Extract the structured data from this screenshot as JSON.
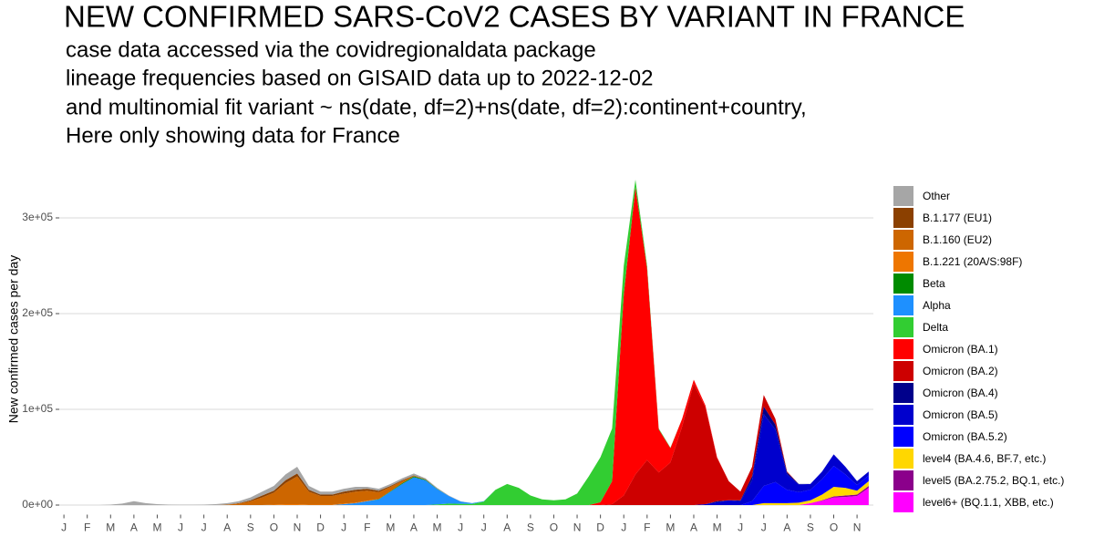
{
  "chart_data": {
    "type": "stacked-area",
    "title": "NEW CONFIRMED SARS-CoV2 CASES BY VARIANT IN FRANCE",
    "subtitle": [
      "case data accessed via the covidregionaldata package",
      "lineage frequencies based on GISAID data up to 2022-12-02",
      "and multinomial fit variant ~ ns(date, df=2)+ns(date, df=2):continent+country,",
      "Here only showing data for France"
    ],
    "y_label": "New confirmed cases per day",
    "grid": true,
    "xlim": [
      -0.2,
      34.7
    ],
    "ylim": [
      -10000,
      350000
    ],
    "yticks": [
      {
        "value": 0,
        "label": "0e+00"
      },
      {
        "value": 100000,
        "label": "1e+05"
      },
      {
        "value": 200000,
        "label": "2e+05"
      },
      {
        "value": 300000,
        "label": "3e+05"
      }
    ],
    "xticks": [
      {
        "value": 0,
        "label": "J"
      },
      {
        "value": 1,
        "label": "F"
      },
      {
        "value": 2,
        "label": "M"
      },
      {
        "value": 3,
        "label": "A"
      },
      {
        "value": 4,
        "label": "M"
      },
      {
        "value": 5,
        "label": "J"
      },
      {
        "value": 6,
        "label": "J"
      },
      {
        "value": 7,
        "label": "A"
      },
      {
        "value": 8,
        "label": "S"
      },
      {
        "value": 9,
        "label": "O"
      },
      {
        "value": 10,
        "label": "N"
      },
      {
        "value": 11,
        "label": "D"
      },
      {
        "value": 12,
        "label": "J"
      },
      {
        "value": 13,
        "label": "F"
      },
      {
        "value": 14,
        "label": "M"
      },
      {
        "value": 15,
        "label": "A"
      },
      {
        "value": 16,
        "label": "M"
      },
      {
        "value": 17,
        "label": "J"
      },
      {
        "value": 18,
        "label": "J"
      },
      {
        "value": 19,
        "label": "A"
      },
      {
        "value": 20,
        "label": "S"
      },
      {
        "value": 21,
        "label": "O"
      },
      {
        "value": 22,
        "label": "N"
      },
      {
        "value": 23,
        "label": "D"
      },
      {
        "value": 24,
        "label": "J"
      },
      {
        "value": 25,
        "label": "F"
      },
      {
        "value": 26,
        "label": "M"
      },
      {
        "value": 27,
        "label": "A"
      },
      {
        "value": 28,
        "label": "M"
      },
      {
        "value": 29,
        "label": "J"
      },
      {
        "value": 30,
        "label": "J"
      },
      {
        "value": 31,
        "label": "A"
      },
      {
        "value": 32,
        "label": "S"
      },
      {
        "value": 33,
        "label": "O"
      },
      {
        "value": 34,
        "label": "N"
      }
    ],
    "x": [
      0,
      0.5,
      1,
      1.5,
      2,
      2.5,
      3,
      3.5,
      4,
      4.5,
      5,
      5.5,
      6,
      6.5,
      7,
      7.5,
      8,
      8.5,
      9,
      9.5,
      10,
      10.5,
      11,
      11.5,
      12,
      12.5,
      13,
      13.5,
      14,
      14.5,
      15,
      15.5,
      16,
      16.5,
      17,
      17.5,
      18,
      18.5,
      19,
      19.5,
      20,
      20.5,
      21,
      21.5,
      22,
      22.5,
      23,
      23.5,
      24,
      24.5,
      25,
      25.5,
      26,
      26.5,
      27,
      27.5,
      28,
      28.5,
      29,
      29.5,
      30,
      30.5,
      31,
      31.5,
      32,
      32.5,
      33,
      33.5,
      34,
      34.5
    ],
    "series": [
      {
        "name": "Other",
        "color": "#a6a6a6",
        "values": [
          0,
          0,
          0,
          0,
          500,
          1500,
          4000,
          2000,
          1000,
          500,
          300,
          300,
          500,
          1000,
          1500,
          2000,
          3000,
          4000,
          5000,
          6000,
          7000,
          4000,
          3000,
          3000,
          3000,
          3000,
          2000,
          2000,
          2000,
          2000,
          2000,
          1000,
          1000,
          500,
          200,
          0,
          0,
          0,
          0,
          0,
          0,
          0,
          0,
          0,
          0,
          0,
          0,
          0,
          0,
          0,
          0,
          0,
          0,
          0,
          0,
          0,
          0,
          0,
          0,
          0,
          0,
          0,
          0,
          0,
          0,
          0,
          0,
          0,
          0,
          0
        ]
      },
      {
        "name": "B.1.177 (EU1)",
        "color": "#8b4000",
        "values": [
          0,
          0,
          0,
          0,
          0,
          0,
          0,
          0,
          0,
          0,
          0,
          0,
          0,
          0,
          0,
          500,
          1000,
          2000,
          2000,
          3000,
          3000,
          2000,
          1500,
          1500,
          2000,
          2000,
          2000,
          1500,
          1000,
          1000,
          500,
          300,
          0,
          0,
          0,
          0,
          0,
          0,
          0,
          0,
          0,
          0,
          0,
          0,
          0,
          0,
          0,
          0,
          0,
          0,
          0,
          0,
          0,
          0,
          0,
          0,
          0,
          0,
          0,
          0,
          0,
          0,
          0,
          0,
          0,
          0,
          0,
          0,
          0,
          0
        ]
      },
      {
        "name": "B.1.160 (EU2)",
        "color": "#cd6600",
        "values": [
          0,
          0,
          0,
          0,
          0,
          0,
          0,
          0,
          0,
          0,
          0,
          0,
          0,
          0,
          500,
          1500,
          4000,
          8000,
          12500,
          22000,
          29000,
          13500,
          9000,
          9000,
          10500,
          11500,
          10500,
          7200,
          4500,
          2200,
          500,
          200,
          0,
          0,
          0,
          0,
          0,
          0,
          0,
          0,
          0,
          0,
          0,
          0,
          0,
          0,
          0,
          0,
          0,
          0,
          0,
          0,
          0,
          0,
          0,
          0,
          0,
          0,
          0,
          0,
          0,
          0,
          0,
          0,
          0,
          0,
          0,
          0,
          0,
          0
        ]
      },
      {
        "name": "B.1.221 (20A/S:98F)",
        "color": "#ee7600",
        "values": [
          0,
          0,
          0,
          0,
          0,
          0,
          0,
          0,
          0,
          0,
          0,
          0,
          0,
          0,
          0,
          0,
          0,
          0,
          500,
          1000,
          1000,
          500,
          500,
          500,
          500,
          500,
          500,
          0,
          0,
          0,
          0,
          0,
          0,
          0,
          0,
          0,
          0,
          0,
          0,
          0,
          0,
          0,
          0,
          0,
          0,
          0,
          0,
          0,
          0,
          0,
          0,
          0,
          0,
          0,
          0,
          0,
          0,
          0,
          0,
          0,
          0,
          0,
          0,
          0,
          0,
          0,
          0,
          0,
          0,
          0
        ]
      },
      {
        "name": "Beta",
        "color": "#008b00",
        "values": [
          0,
          0,
          0,
          0,
          0,
          0,
          0,
          0,
          0,
          0,
          0,
          0,
          0,
          0,
          0,
          0,
          0,
          0,
          0,
          0,
          0,
          0,
          0,
          0,
          0,
          0,
          0,
          300,
          500,
          800,
          1000,
          500,
          300,
          0,
          0,
          0,
          0,
          0,
          0,
          0,
          0,
          0,
          0,
          0,
          0,
          0,
          0,
          0,
          0,
          0,
          0,
          0,
          0,
          0,
          0,
          0,
          0,
          0,
          0,
          0,
          0,
          0,
          0,
          0,
          0,
          0,
          0,
          0,
          0,
          0
        ]
      },
      {
        "name": "Alpha",
        "color": "#1e90ff",
        "values": [
          0,
          0,
          0,
          0,
          0,
          0,
          0,
          0,
          0,
          0,
          0,
          0,
          0,
          0,
          0,
          0,
          0,
          0,
          0,
          0,
          0,
          0,
          0,
          0,
          1000,
          2000,
          4000,
          6000,
          14000,
          22000,
          29000,
          26000,
          16000,
          8000,
          2500,
          800,
          300,
          0,
          0,
          0,
          0,
          0,
          0,
          0,
          0,
          0,
          0,
          0,
          0,
          0,
          0,
          0,
          0,
          0,
          0,
          0,
          0,
          0,
          0,
          0,
          0,
          0,
          0,
          0,
          0,
          0,
          0,
          0,
          0,
          0
        ]
      },
      {
        "name": "Delta",
        "color": "#32cd32",
        "values": [
          0,
          0,
          0,
          0,
          0,
          0,
          0,
          0,
          0,
          0,
          0,
          0,
          0,
          0,
          0,
          0,
          0,
          0,
          0,
          0,
          0,
          0,
          0,
          0,
          0,
          0,
          0,
          0,
          0,
          0,
          0,
          0,
          700,
          1500,
          1300,
          1200,
          3700,
          16000,
          22000,
          18000,
          10000,
          6000,
          5000,
          6000,
          12000,
          30000,
          47000,
          55000,
          30000,
          8000,
          3000,
          1000,
          500,
          0,
          0,
          0,
          0,
          0,
          0,
          0,
          0,
          0,
          0,
          0,
          0,
          0,
          0,
          0,
          0,
          0
        ]
      },
      {
        "name": "Omicron (BA.1)",
        "color": "#ff0000",
        "values": [
          0,
          0,
          0,
          0,
          0,
          0,
          0,
          0,
          0,
          0,
          0,
          0,
          0,
          0,
          0,
          0,
          0,
          0,
          0,
          0,
          0,
          0,
          0,
          0,
          0,
          0,
          0,
          0,
          0,
          0,
          0,
          0,
          0,
          0,
          0,
          0,
          0,
          0,
          0,
          0,
          0,
          0,
          0,
          0,
          0,
          0,
          3000,
          24000,
          210000,
          300000,
          200000,
          45000,
          15000,
          8000,
          4000,
          2000,
          1000,
          0,
          0,
          0,
          0,
          0,
          0,
          0,
          0,
          0,
          0,
          0,
          0,
          0
        ]
      },
      {
        "name": "Omicron (BA.2)",
        "color": "#cd0000",
        "values": [
          0,
          0,
          0,
          0,
          0,
          0,
          0,
          0,
          0,
          0,
          0,
          0,
          0,
          0,
          0,
          0,
          0,
          0,
          0,
          0,
          0,
          0,
          0,
          0,
          0,
          0,
          0,
          0,
          0,
          0,
          0,
          0,
          0,
          0,
          0,
          0,
          0,
          0,
          0,
          0,
          0,
          0,
          0,
          0,
          0,
          0,
          0,
          1000,
          10000,
          32000,
          47000,
          34000,
          44500,
          82000,
          127000,
          101000,
          45000,
          20000,
          9000,
          10000,
          12000,
          6000,
          1000,
          0,
          0,
          0,
          0,
          0,
          0,
          0
        ]
      },
      {
        "name": "Omicron (BA.4)",
        "color": "#00008b",
        "values": [
          0,
          0,
          0,
          0,
          0,
          0,
          0,
          0,
          0,
          0,
          0,
          0,
          0,
          0,
          0,
          0,
          0,
          0,
          0,
          0,
          0,
          0,
          0,
          0,
          0,
          0,
          0,
          0,
          0,
          0,
          0,
          0,
          0,
          0,
          0,
          0,
          0,
          0,
          0,
          0,
          0,
          0,
          0,
          0,
          0,
          0,
          0,
          0,
          0,
          0,
          0,
          0,
          0,
          0,
          0,
          0,
          1000,
          0,
          1000,
          4000,
          8000,
          5000,
          2000,
          500,
          0,
          0,
          0,
          0,
          0,
          0
        ]
      },
      {
        "name": "Omicron (BA.5)",
        "color": "#0000cd",
        "values": [
          0,
          0,
          0,
          0,
          0,
          0,
          0,
          0,
          0,
          0,
          0,
          0,
          0,
          0,
          0,
          0,
          0,
          0,
          0,
          0,
          0,
          0,
          0,
          0,
          0,
          0,
          0,
          0,
          0,
          0,
          0,
          0,
          0,
          0,
          0,
          0,
          0,
          0,
          0,
          0,
          0,
          0,
          0,
          0,
          0,
          0,
          0,
          0,
          0,
          0,
          0,
          0,
          0,
          0,
          0,
          1000,
          3000,
          5000,
          4000,
          22000,
          75000,
          55000,
          16000,
          8000,
          6000,
          8000,
          12000,
          8000,
          4000,
          4000
        ]
      },
      {
        "name": "Omicron (BA.5.2)",
        "color": "#0000ff",
        "values": [
          0,
          0,
          0,
          0,
          0,
          0,
          0,
          0,
          0,
          0,
          0,
          0,
          0,
          0,
          0,
          0,
          0,
          0,
          0,
          0,
          0,
          0,
          0,
          0,
          0,
          0,
          0,
          0,
          0,
          0,
          0,
          0,
          0,
          0,
          0,
          0,
          0,
          0,
          0,
          0,
          0,
          0,
          0,
          0,
          0,
          0,
          0,
          0,
          0,
          0,
          0,
          0,
          0,
          0,
          0,
          0,
          0,
          0,
          0,
          4000,
          18000,
          22000,
          14000,
          11000,
          11000,
          16000,
          22000,
          14000,
          6000,
          6000
        ]
      },
      {
        "name": "level4 (BA.4.6, BF.7, etc.)",
        "color": "#ffd700",
        "values": [
          0,
          0,
          0,
          0,
          0,
          0,
          0,
          0,
          0,
          0,
          0,
          0,
          0,
          0,
          0,
          0,
          0,
          0,
          0,
          0,
          0,
          0,
          0,
          0,
          0,
          0,
          0,
          0,
          0,
          0,
          0,
          0,
          0,
          0,
          0,
          0,
          0,
          0,
          0,
          0,
          0,
          0,
          0,
          0,
          0,
          0,
          0,
          0,
          0,
          0,
          0,
          0,
          0,
          0,
          0,
          0,
          0,
          0,
          0,
          0,
          2000,
          2000,
          2000,
          2500,
          3000,
          6000,
          10000,
          8000,
          4000,
          5000
        ]
      },
      {
        "name": "level5 (BA.2.75.2, BQ.1, etc.)",
        "color": "#8b008b",
        "values": [
          0,
          0,
          0,
          0,
          0,
          0,
          0,
          0,
          0,
          0,
          0,
          0,
          0,
          0,
          0,
          0,
          0,
          0,
          0,
          0,
          0,
          0,
          0,
          0,
          0,
          0,
          0,
          0,
          0,
          0,
          0,
          0,
          0,
          0,
          0,
          0,
          0,
          0,
          0,
          0,
          0,
          0,
          0,
          0,
          0,
          0,
          0,
          0,
          0,
          0,
          0,
          0,
          0,
          0,
          0,
          0,
          0,
          0,
          0,
          0,
          0,
          0,
          0,
          0,
          0,
          500,
          1000,
          1500,
          1500,
          2000
        ]
      },
      {
        "name": "level6+ (BQ.1.1, XBB, etc.)",
        "color": "#ff00ff",
        "values": [
          0,
          0,
          0,
          0,
          0,
          0,
          0,
          0,
          0,
          0,
          0,
          0,
          0,
          0,
          0,
          0,
          0,
          0,
          0,
          0,
          0,
          0,
          0,
          0,
          0,
          0,
          0,
          0,
          0,
          0,
          0,
          0,
          0,
          0,
          0,
          0,
          0,
          0,
          0,
          0,
          0,
          0,
          0,
          0,
          0,
          0,
          0,
          0,
          0,
          0,
          0,
          0,
          0,
          0,
          0,
          0,
          0,
          0,
          0,
          0,
          0,
          0,
          0,
          0,
          2000,
          4500,
          8000,
          8500,
          9500,
          18000
        ]
      }
    ]
  }
}
